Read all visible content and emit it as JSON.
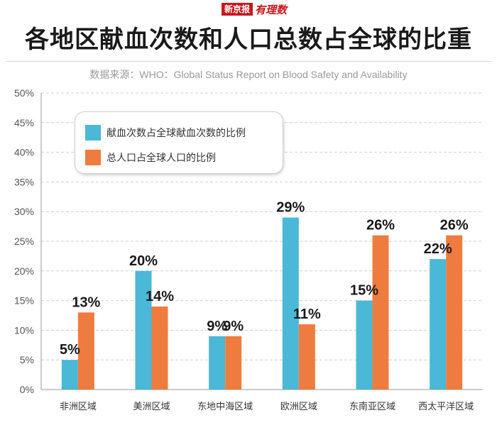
{
  "brand": {
    "box": "新京报",
    "script": "有理数"
  },
  "colors": {
    "blood": "#4ab8d6",
    "population": "#ef7c3f",
    "grid": "#cfcfcf",
    "axis": "#9a9a9a",
    "text": "#333333"
  },
  "chart_data": {
    "type": "bar",
    "title": "各地区献血次数和人口总数占全球的比重",
    "subtitle": "数据来源：WHO：Global Status Report on Blood Safety and Availability",
    "categories": [
      "非洲区域",
      "美洲区域",
      "东地中海区域",
      "欧洲区域",
      "东南亚区域",
      "西太平洋区域"
    ],
    "series": [
      {
        "name": "献血次数占全球献血次数的比例",
        "values": [
          5,
          20,
          9,
          29,
          15,
          22
        ],
        "labels": [
          "5%",
          "20%",
          "9%",
          "29%",
          "15%",
          "22%"
        ]
      },
      {
        "name": "总人口占全球人口的比例",
        "values": [
          13,
          14,
          9,
          11,
          26,
          26
        ],
        "labels": [
          "13%",
          "14%",
          "9%",
          "11%",
          "26%",
          "26%"
        ]
      }
    ],
    "yticks": [
      "0%",
      "5%",
      "10%",
      "15%",
      "20%",
      "25%",
      "30%",
      "35%",
      "40%",
      "45%",
      "50%"
    ],
    "ylim": [
      0,
      50
    ],
    "grid": true,
    "legend_position": "top-left"
  }
}
